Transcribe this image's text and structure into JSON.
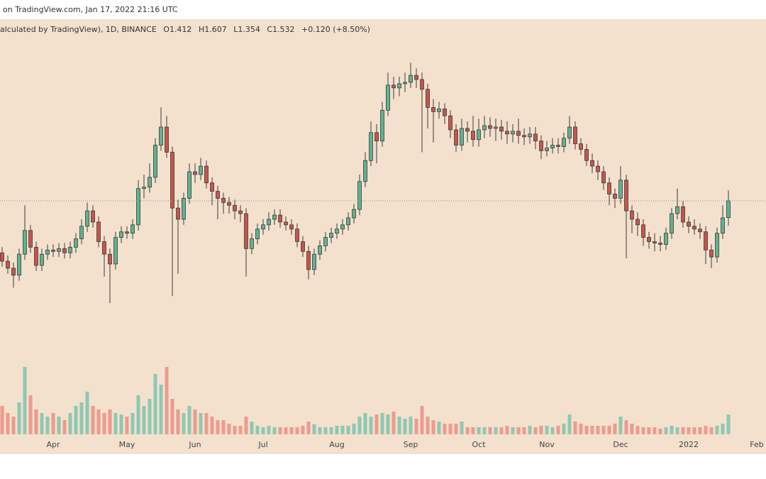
{
  "header": {
    "text": "on TradingView.com, Jan 17, 2022 21:16 UTC"
  },
  "chart_data": {
    "type": "candlestick",
    "legend": {
      "symbol": "alculated by TradingView), 1D, BINANCE",
      "items": [
        "O1.412",
        "H1.607",
        "L1.354",
        "C1.532",
        "+0.120 (+8.50%)"
      ]
    },
    "series": {
      "open": [
        1.16,
        1.1,
        1.05,
        1.0,
        1.15,
        1.32,
        1.2,
        1.07,
        1.15,
        1.18,
        1.17,
        1.19,
        1.16,
        1.2,
        1.26,
        1.35,
        1.46,
        1.38,
        1.24,
        1.15,
        1.08,
        1.27,
        1.31,
        1.3,
        1.36,
        1.62,
        1.63,
        1.7,
        1.93,
        2.06,
        1.88,
        1.48,
        1.4,
        1.55,
        1.74,
        1.72,
        1.78,
        1.66,
        1.6,
        1.55,
        1.52,
        1.5,
        1.46,
        1.44,
        1.19,
        1.26,
        1.33,
        1.36,
        1.4,
        1.43,
        1.38,
        1.36,
        1.33,
        1.24,
        1.17,
        1.04,
        1.15,
        1.21,
        1.27,
        1.3,
        1.33,
        1.36,
        1.41,
        1.47,
        1.67,
        1.82,
        2.02,
        1.96,
        2.18,
        2.36,
        2.34,
        2.37,
        2.38,
        2.43,
        2.4,
        2.33,
        2.2,
        2.17,
        2.19,
        2.14,
        2.04,
        1.93,
        2.05,
        2.03,
        1.97,
        2.04,
        2.07,
        2.05,
        2.06,
        2.03,
        2.01,
        2.03,
        2.0,
        1.99,
        2.01,
        1.96,
        1.89,
        1.91,
        1.93,
        1.92,
        1.98,
        2.06,
        1.94,
        1.9,
        1.82,
        1.78,
        1.74,
        1.66,
        1.58,
        1.55,
        1.68,
        1.46,
        1.4,
        1.36,
        1.27,
        1.24,
        1.23,
        1.22,
        1.3,
        1.44,
        1.49,
        1.38,
        1.35,
        1.33,
        1.31,
        1.18,
        1.13,
        1.3,
        1.412
      ],
      "high": [
        1.2,
        1.14,
        1.09,
        1.19,
        1.5,
        1.36,
        1.24,
        1.19,
        1.22,
        1.22,
        1.23,
        1.23,
        1.24,
        1.3,
        1.4,
        1.52,
        1.5,
        1.42,
        1.28,
        1.19,
        1.31,
        1.35,
        1.35,
        1.4,
        1.68,
        1.72,
        1.8,
        1.98,
        2.2,
        2.14,
        1.92,
        1.54,
        1.59,
        1.8,
        1.8,
        1.84,
        1.82,
        1.7,
        1.64,
        1.59,
        1.56,
        1.54,
        1.5,
        1.48,
        1.3,
        1.37,
        1.4,
        1.45,
        1.47,
        1.47,
        1.42,
        1.4,
        1.37,
        1.28,
        1.21,
        1.19,
        1.25,
        1.31,
        1.34,
        1.37,
        1.4,
        1.45,
        1.51,
        1.72,
        1.88,
        2.1,
        2.08,
        2.24,
        2.45,
        2.42,
        2.42,
        2.45,
        2.52,
        2.48,
        2.45,
        2.37,
        2.26,
        2.24,
        2.23,
        2.18,
        2.08,
        2.12,
        2.1,
        2.14,
        2.12,
        2.14,
        2.13,
        2.12,
        2.11,
        2.1,
        2.08,
        2.12,
        2.05,
        2.06,
        2.06,
        2.0,
        1.96,
        1.98,
        1.98,
        2.02,
        2.14,
        2.1,
        1.98,
        1.94,
        1.87,
        1.82,
        1.78,
        1.7,
        1.62,
        1.78,
        1.72,
        1.5,
        1.45,
        1.4,
        1.31,
        1.3,
        1.28,
        1.34,
        1.48,
        1.62,
        1.53,
        1.42,
        1.4,
        1.37,
        1.35,
        1.22,
        1.34,
        1.5,
        1.607
      ],
      "low": [
        1.06,
        1.01,
        0.91,
        0.96,
        1.11,
        1.16,
        1.03,
        1.03,
        1.11,
        1.13,
        1.13,
        1.12,
        1.12,
        1.16,
        1.22,
        1.31,
        1.34,
        1.2,
        0.99,
        0.8,
        1.04,
        1.23,
        1.26,
        1.26,
        1.32,
        1.55,
        1.59,
        1.66,
        1.89,
        1.84,
        0.85,
        1.01,
        1.36,
        1.51,
        1.66,
        1.68,
        1.62,
        1.5,
        1.4,
        1.44,
        1.44,
        1.4,
        1.38,
        0.99,
        1.15,
        1.22,
        1.29,
        1.32,
        1.36,
        1.34,
        1.32,
        1.29,
        1.2,
        1.13,
        0.97,
        1.0,
        1.11,
        1.17,
        1.23,
        1.26,
        1.29,
        1.32,
        1.37,
        1.43,
        1.63,
        1.78,
        1.8,
        1.92,
        2.14,
        2.26,
        2.28,
        2.31,
        2.34,
        2.34,
        1.88,
        2.05,
        1.95,
        2.12,
        2.08,
        1.98,
        1.88,
        1.89,
        1.95,
        1.92,
        1.92,
        1.98,
        1.99,
        1.96,
        1.97,
        1.94,
        1.95,
        1.94,
        1.93,
        1.94,
        1.9,
        1.83,
        1.85,
        1.87,
        1.87,
        1.88,
        1.94,
        1.9,
        1.86,
        1.78,
        1.73,
        1.68,
        1.61,
        1.5,
        1.48,
        1.51,
        1.12,
        1.3,
        1.28,
        1.21,
        1.19,
        1.17,
        1.17,
        1.18,
        1.26,
        1.4,
        1.34,
        1.3,
        1.29,
        1.26,
        1.08,
        1.05,
        1.09,
        1.26,
        1.354
      ],
      "close": [
        1.1,
        1.05,
        1.0,
        1.15,
        1.32,
        1.2,
        1.07,
        1.15,
        1.18,
        1.17,
        1.19,
        1.16,
        1.2,
        1.26,
        1.35,
        1.46,
        1.38,
        1.24,
        1.15,
        1.08,
        1.27,
        1.31,
        1.3,
        1.36,
        1.62,
        1.63,
        1.7,
        1.93,
        2.06,
        1.88,
        1.48,
        1.4,
        1.55,
        1.74,
        1.72,
        1.78,
        1.66,
        1.6,
        1.55,
        1.52,
        1.5,
        1.46,
        1.44,
        1.19,
        1.26,
        1.33,
        1.36,
        1.4,
        1.43,
        1.38,
        1.36,
        1.33,
        1.24,
        1.17,
        1.04,
        1.15,
        1.21,
        1.27,
        1.3,
        1.33,
        1.36,
        1.41,
        1.47,
        1.67,
        1.82,
        2.02,
        1.96,
        2.18,
        2.36,
        2.34,
        2.37,
        2.38,
        2.43,
        2.4,
        2.33,
        2.2,
        2.17,
        2.19,
        2.14,
        2.04,
        1.93,
        2.05,
        2.03,
        1.97,
        2.04,
        2.07,
        2.05,
        2.06,
        2.03,
        2.01,
        2.03,
        2.0,
        1.99,
        2.01,
        1.96,
        1.89,
        1.91,
        1.93,
        1.92,
        1.98,
        2.06,
        1.94,
        1.9,
        1.82,
        1.78,
        1.74,
        1.66,
        1.58,
        1.55,
        1.68,
        1.46,
        1.4,
        1.36,
        1.27,
        1.24,
        1.23,
        1.22,
        1.3,
        1.44,
        1.49,
        1.38,
        1.35,
        1.33,
        1.31,
        1.18,
        1.13,
        1.3,
        1.41,
        1.532
      ]
    },
    "volume": [
      40,
      30,
      25,
      45,
      95,
      55,
      35,
      30,
      25,
      30,
      25,
      20,
      30,
      40,
      45,
      60,
      40,
      35,
      30,
      35,
      30,
      28,
      25,
      30,
      55,
      40,
      50,
      85,
      70,
      95,
      50,
      35,
      30,
      40,
      35,
      30,
      30,
      25,
      20,
      20,
      15,
      12,
      12,
      25,
      18,
      12,
      10,
      12,
      10,
      10,
      10,
      10,
      10,
      12,
      18,
      14,
      10,
      10,
      10,
      12,
      12,
      12,
      15,
      25,
      30,
      25,
      28,
      30,
      28,
      32,
      25,
      22,
      25,
      22,
      40,
      25,
      20,
      18,
      15,
      15,
      15,
      18,
      10,
      10,
      10,
      10,
      10,
      10,
      10,
      12,
      10,
      10,
      10,
      12,
      10,
      12,
      12,
      10,
      12,
      15,
      28,
      18,
      15,
      12,
      12,
      12,
      12,
      12,
      15,
      25,
      20,
      15,
      12,
      10,
      10,
      10,
      8,
      10,
      12,
      10,
      10,
      10,
      10,
      10,
      12,
      10,
      12,
      15,
      28
    ],
    "ylim": [
      0.43,
      2.715
    ],
    "vlim": [
      0,
      100
    ],
    "xlim": [
      0,
      134
    ],
    "xticks": [
      {
        "value": 9,
        "label": "Apr"
      },
      {
        "value": 22,
        "label": "May"
      },
      {
        "value": 34,
        "label": "Jun"
      },
      {
        "value": 46,
        "label": "Jul"
      },
      {
        "value": 59,
        "label": "Aug"
      },
      {
        "value": 72,
        "label": "Sep"
      },
      {
        "value": 84,
        "label": "Oct"
      },
      {
        "value": 96,
        "label": "Nov"
      },
      {
        "value": 109,
        "label": "Dec"
      },
      {
        "value": 121,
        "label": "2022"
      },
      {
        "value": 133,
        "label": "Feb"
      }
    ],
    "last_price_line": true,
    "up_color": "#5fb392",
    "down_color": "#c9544c",
    "volume_up_color": "#8fc8b2",
    "volume_down_color": "#ee9a8e"
  }
}
